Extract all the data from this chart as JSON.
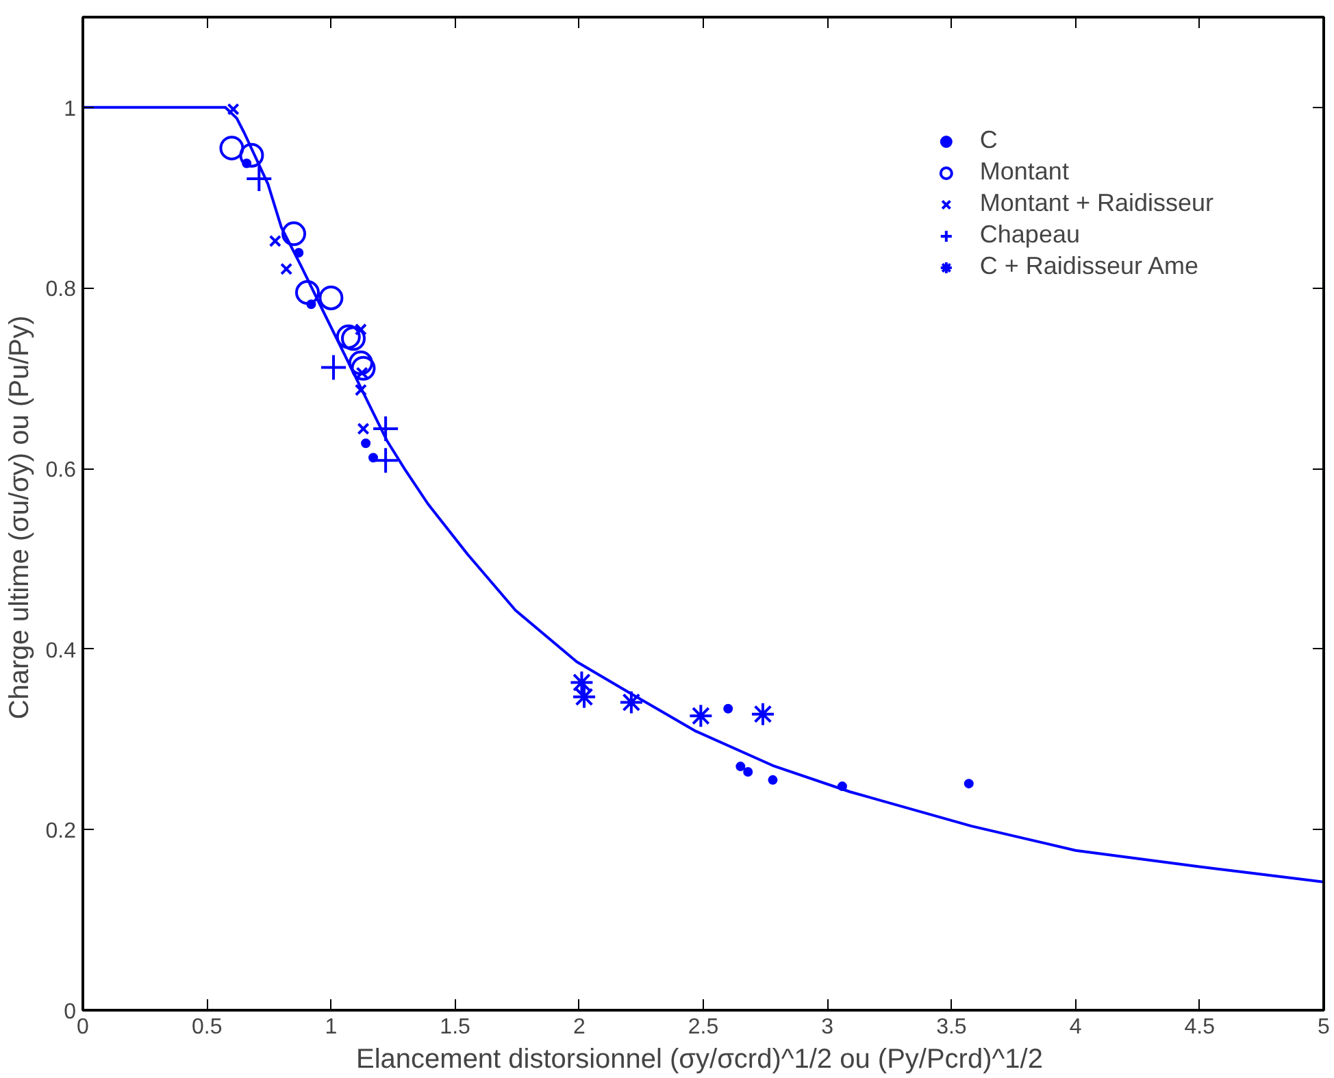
{
  "chart_data": {
    "type": "scatter",
    "xlabel": "Elancement distorsionnel  (σy/σcrd)^1/2 ou (Py/Pcrd)^1/2",
    "ylabel": "Charge ultime  (σu/σy) ou (Pu/Py)",
    "xlim": [
      0,
      5
    ],
    "ylim": [
      0,
      1.1
    ],
    "xticks": [
      0,
      0.5,
      1,
      1.5,
      2,
      2.5,
      3,
      3.5,
      4,
      4.5,
      5
    ],
    "yticks": [
      0,
      0.2,
      0.4,
      0.6,
      0.8,
      1
    ],
    "grid": false,
    "legend": "top right",
    "series": [
      {
        "name": "C",
        "color": "#0000ff",
        "marker": "dot",
        "x": [
          0.66,
          0.87,
          0.92,
          1.14,
          1.17,
          2.6,
          2.65,
          2.68,
          2.78,
          3.06,
          3.57
        ],
        "values": [
          0.938,
          0.839,
          0.782,
          0.628,
          0.612,
          0.334,
          0.27,
          0.264,
          0.255,
          0.248,
          0.251
        ]
      },
      {
        "name": "Montant",
        "color": "#0000ff",
        "marker": "circle",
        "x": [
          0.6,
          0.68,
          0.85,
          0.905,
          1.0,
          1.07,
          1.09,
          1.12,
          1.13
        ],
        "values": [
          0.955,
          0.947,
          0.86,
          0.795,
          0.789,
          0.746,
          0.744,
          0.717,
          0.711
        ]
      },
      {
        "name": "Montant + Raidisseur",
        "color": "#0000ff",
        "marker": "x",
        "x": [
          0.606,
          0.775,
          0.82,
          1.12,
          1.125,
          1.12,
          1.13
        ],
        "values": [
          0.998,
          0.852,
          0.821,
          0.754,
          0.706,
          0.687,
          0.644
        ]
      },
      {
        "name": "Chapeau",
        "color": "#0000ff",
        "marker": "cross",
        "x": [
          0.71,
          1.01,
          1.22,
          1.22
        ],
        "values": [
          0.921,
          0.712,
          0.644,
          0.609
        ]
      },
      {
        "name": "C + Raidisseur Ame",
        "color": "#0000ff",
        "x": [
          2.01,
          2.02,
          2.21,
          2.49,
          2.74
        ],
        "values": [
          0.363,
          0.347,
          0.341,
          0.326,
          0.328
        ]
      },
      {
        "type": "line",
        "color": "#0000ff",
        "line_style": "solid",
        "x": [
          0,
          0.574,
          0.62,
          0.65,
          0.746,
          0.8,
          0.88,
          0.976,
          1.053,
          1.13,
          1.225,
          1.3,
          1.39,
          1.55,
          1.743,
          1.99,
          2.2,
          2.47,
          2.78,
          3.09,
          3.58,
          4.0,
          4.5,
          5.0
        ],
        "values": [
          1,
          1,
          0.988,
          0.972,
          0.915,
          0.867,
          0.824,
          0.77,
          0.727,
          0.684,
          0.631,
          0.598,
          0.561,
          0.505,
          0.443,
          0.386,
          0.352,
          0.309,
          0.271,
          0.242,
          0.204,
          0.177,
          0.159,
          0.142
        ]
      }
    ]
  }
}
